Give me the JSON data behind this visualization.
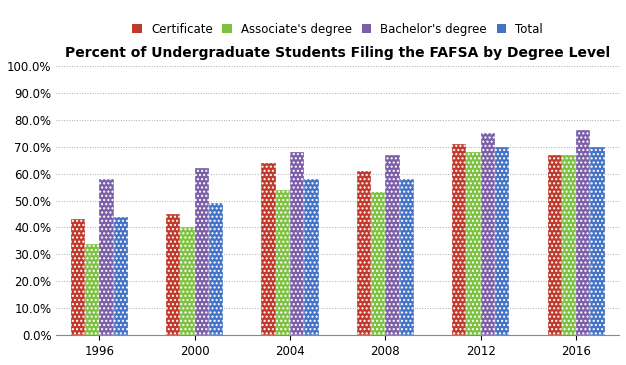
{
  "title": "Percent of Undergraduate Students Filing the FAFSA by Degree Level",
  "years": [
    1996,
    2000,
    2004,
    2008,
    2012,
    2016
  ],
  "series": {
    "Certificate": [
      0.43,
      0.45,
      0.64,
      0.61,
      0.71,
      0.67
    ],
    "Associate's degree": [
      0.34,
      0.4,
      0.54,
      0.53,
      0.68,
      0.67
    ],
    "Bachelor's degree": [
      0.58,
      0.62,
      0.68,
      0.67,
      0.75,
      0.76
    ],
    "Total": [
      0.44,
      0.49,
      0.58,
      0.58,
      0.7,
      0.7
    ]
  },
  "colors": {
    "Certificate": "#C0392B",
    "Associate's degree": "#7DC142",
    "Bachelor's degree": "#7B5EA7",
    "Total": "#4472C4"
  },
  "ylim": [
    0.0,
    1.0
  ],
  "yticks": [
    0.0,
    0.1,
    0.2,
    0.3,
    0.4,
    0.5,
    0.6,
    0.7,
    0.8,
    0.9,
    1.0
  ],
  "bar_width": 0.15,
  "group_positions": [
    0,
    1,
    2,
    3,
    4,
    5
  ],
  "legend_order": [
    "Certificate",
    "Associate's degree",
    "Bachelor's degree",
    "Total"
  ],
  "background_color": "#FFFFFF",
  "grid_color": "#AAAAAA",
  "title_fontsize": 10,
  "tick_fontsize": 8.5,
  "legend_fontsize": 8.5
}
